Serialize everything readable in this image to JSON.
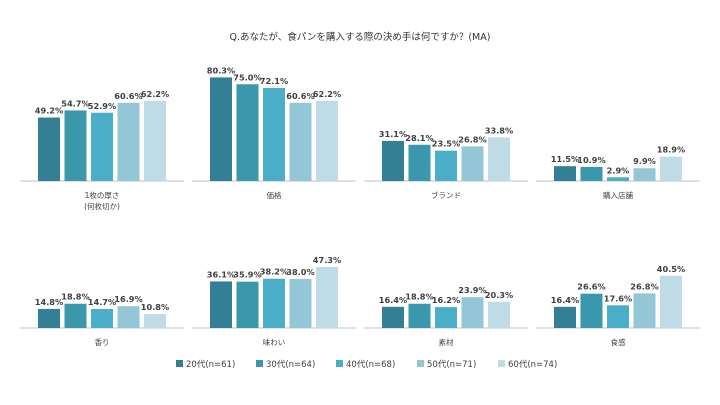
{
  "chart_data": {
    "type": "bar",
    "title": "Q.あなたが、食パンを購入する際の決め手は何ですか？(MA)",
    "xlabel": "",
    "ylabel": "",
    "ylim": [
      0,
      85
    ],
    "grid": false,
    "legend_position": "bottom-center",
    "colors": [
      "#337f94",
      "#3a97ac",
      "#4aaec8",
      "#93c6d6",
      "#bfdce6"
    ],
    "series_names": [
      "20代(n=61)",
      "30代(n=64)",
      "40代(n=68)",
      "50代(n=71)",
      "60代(n=74)"
    ],
    "panels": [
      {
        "category": "1枚の厚さ\n(何枚切か)",
        "values": [
          49.2,
          54.7,
          52.9,
          60.6,
          62.2
        ],
        "value_labels": [
          "49.2%",
          "54.7%",
          "52.9%",
          "60.6%",
          "62.2%"
        ]
      },
      {
        "category": "価格",
        "values": [
          80.3,
          75.0,
          72.1,
          60.6,
          62.2
        ],
        "value_labels": [
          "80.3%",
          "75.0%",
          "72.1%",
          "60.6%",
          "62.2%"
        ]
      },
      {
        "category": "ブランド",
        "values": [
          31.1,
          28.1,
          23.5,
          26.8,
          33.8
        ],
        "value_labels": [
          "31.1%",
          "28.1%",
          "23.5%",
          "26.8%",
          "33.8%"
        ]
      },
      {
        "category": "購入店舗",
        "values": [
          11.5,
          10.9,
          2.9,
          9.9,
          18.9
        ],
        "value_labels": [
          "11.5%",
          "10.9%",
          "2.9%",
          "9.9%",
          "18.9%"
        ]
      },
      {
        "category": "香り",
        "values": [
          14.8,
          18.8,
          14.7,
          16.9,
          10.8
        ],
        "value_labels": [
          "14.8%",
          "18.8%",
          "14.7%",
          "16.9%",
          "10.8%"
        ]
      },
      {
        "category": "味わい",
        "values": [
          36.1,
          35.9,
          38.2,
          38.0,
          47.3
        ],
        "value_labels": [
          "36.1%",
          "35.9%",
          "38.2%",
          "38.0%",
          "47.3%"
        ]
      },
      {
        "category": "素材",
        "values": [
          16.4,
          18.8,
          16.2,
          23.9,
          20.3
        ],
        "value_labels": [
          "16.4%",
          "18.8%",
          "16.2%",
          "23.9%",
          "20.3%"
        ]
      },
      {
        "category": "食感",
        "values": [
          16.4,
          26.6,
          17.6,
          26.8,
          40.5
        ],
        "value_labels": [
          "16.4%",
          "26.6%",
          "17.6%",
          "26.8%",
          "40.5%"
        ]
      }
    ]
  }
}
